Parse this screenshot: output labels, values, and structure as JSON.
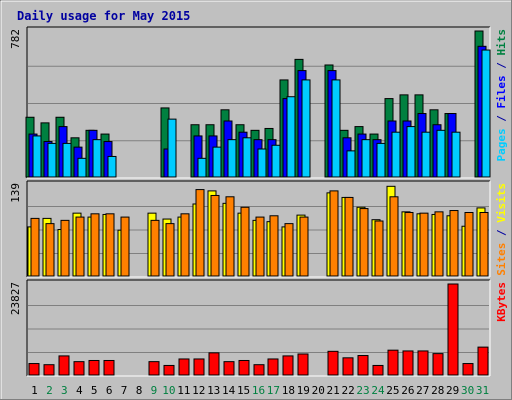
{
  "chart_data": {
    "type": "bar",
    "title": "Daily usage for May 2015",
    "categories": [
      "1",
      "2",
      "3",
      "4",
      "5",
      "6",
      "7",
      "8",
      "9",
      "10",
      "11",
      "12",
      "13",
      "14",
      "15",
      "16",
      "17",
      "18",
      "19",
      "20",
      "21",
      "22",
      "23",
      "24",
      "25",
      "26",
      "27",
      "28",
      "29",
      "30",
      "31"
    ],
    "weekend_days": [
      "2",
      "3",
      "9",
      "10",
      "16",
      "17",
      "23",
      "24",
      "30",
      "31"
    ],
    "grid": true,
    "panels": [
      {
        "key": "hits_files_pages",
        "ymax_label": "782",
        "ylim": [
          0,
          782
        ],
        "axis_label_parts": [
          {
            "text": "Pages",
            "color": "#00ccff"
          },
          {
            "text": " / ",
            "color": "#0000a0"
          },
          {
            "text": "Files",
            "color": "#0000ff"
          },
          {
            "text": " / ",
            "color": "#0000a0"
          },
          {
            "text": "Hits",
            "color": "#008040"
          }
        ],
        "series": [
          {
            "name": "Hits",
            "color": "#008040",
            "values": [
              320,
              290,
              320,
              210,
              250,
              230,
              0,
              0,
              0,
              370,
              0,
              280,
              280,
              360,
              280,
              250,
              260,
              520,
              630,
              0,
              600,
              250,
              270,
              230,
              420,
              440,
              440,
              360,
              340,
              0,
              782
            ]
          },
          {
            "name": "Files",
            "color": "#0000ff",
            "values": [
              230,
              190,
              270,
              160,
              250,
              190,
              0,
              0,
              0,
              150,
              0,
              220,
              220,
              300,
              240,
              200,
              200,
              420,
              570,
              0,
              570,
              210,
              230,
              200,
              300,
              300,
              340,
              280,
              340,
              0,
              700
            ]
          },
          {
            "name": "Pages",
            "color": "#00ccff",
            "values": [
              220,
              180,
              180,
              100,
              200,
              110,
              0,
              0,
              0,
              310,
              0,
              100,
              160,
              200,
              210,
              150,
              170,
              430,
              520,
              0,
              520,
              140,
              200,
              180,
              240,
              270,
              240,
              250,
              240,
              0,
              680
            ]
          }
        ]
      },
      {
        "key": "visits_sites",
        "ymax_label": "139",
        "ylim": [
          0,
          139
        ],
        "axis_label_parts": [
          {
            "text": "Sites",
            "color": "#ff8000"
          },
          {
            "text": " / ",
            "color": "#0000a0"
          },
          {
            "text": "Visits",
            "color": "#ffff00"
          }
        ],
        "series": [
          {
            "name": "Visits",
            "color": "#ffff00",
            "values": [
              75,
              88,
              71,
              96,
              90,
              94,
              70,
              0,
              96,
              87,
              90,
              110,
              130,
              111,
              96,
              85,
              83,
              75,
              93,
              0,
              127,
              120,
              105,
              86,
              137,
              98,
              95,
              94,
              92,
              76,
              104
            ]
          },
          {
            "name": "Sites",
            "color": "#ff8000",
            "values": [
              88,
              80,
              85,
              90,
              95,
              95,
              90,
              0,
              85,
              80,
              95,
              132,
              123,
              121,
              105,
              90,
              92,
              80,
              90,
              0,
              130,
              120,
              103,
              84,
              121,
              97,
              96,
              98,
              100,
              97,
              97
            ]
          }
        ]
      },
      {
        "key": "kbytes",
        "ymax_label": "23827",
        "ylim": [
          0,
          23827
        ],
        "axis_label_parts": [
          {
            "text": "KBytes",
            "color": "#ff0000"
          }
        ],
        "series": [
          {
            "name": "KBytes",
            "color": "#ff0000",
            "values": [
              3000,
              2700,
              5000,
              3500,
              3800,
              3800,
              0,
              0,
              3500,
              2500,
              4200,
              4200,
              5800,
              3500,
              3800,
              2700,
              4200,
              5000,
              5500,
              0,
              6200,
              4500,
              5100,
              2500,
              6500,
              6300,
              6300,
              5600,
              23827,
              3000,
              7300
            ]
          }
        ]
      }
    ]
  }
}
